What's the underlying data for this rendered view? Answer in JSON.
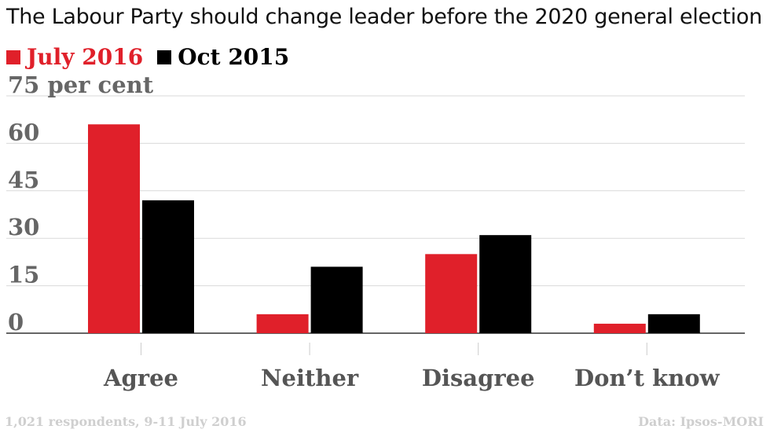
{
  "title": "The Labour Party should change leader before the 2020 general election",
  "footer": {
    "note": "1,021 respondents, 9-11 July 2016",
    "source": "Data: Ipsos-MORI"
  },
  "colors": {
    "july": "#e0202a",
    "oct": "#000000",
    "grid": "#d9d9d9",
    "tick_text": "#666666",
    "category_text": "#555555"
  },
  "chart_data": {
    "type": "bar",
    "title": "The Labour Party should change leader before the 2020 general election",
    "categories": [
      "Agree",
      "Neither",
      "Disagree",
      "Don’t know"
    ],
    "series": [
      {
        "name": "July 2016",
        "values": [
          66,
          6,
          25,
          3
        ]
      },
      {
        "name": "Oct 2015",
        "values": [
          42,
          21,
          31,
          6
        ]
      }
    ],
    "ylim": [
      0,
      75
    ],
    "yticks": [
      0,
      15,
      30,
      45,
      60,
      75
    ],
    "ytick_labels": [
      "0",
      "15",
      "30",
      "45",
      "60",
      "75 per cent"
    ],
    "grid": true,
    "legend": "top-left"
  }
}
